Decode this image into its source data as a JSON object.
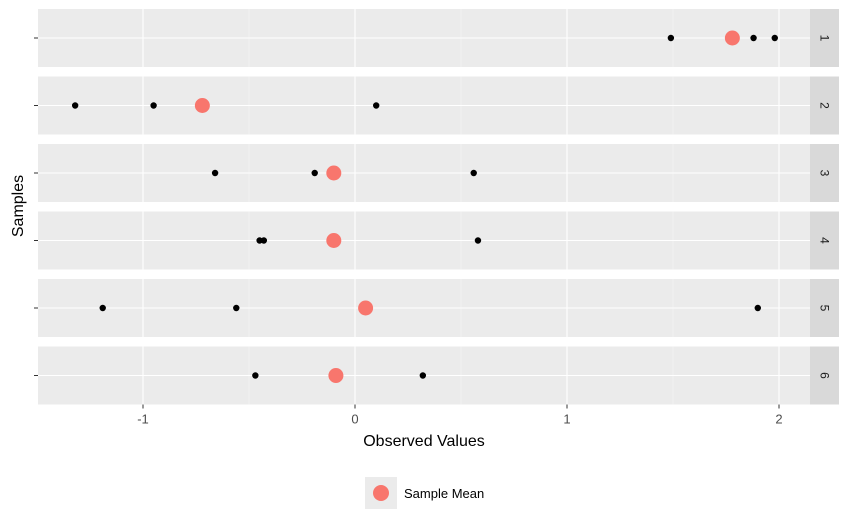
{
  "chart_data": {
    "type": "scatter",
    "xlabel": "Observed Values",
    "ylabel": "Samples",
    "xlim": [
      -1.5,
      2.28
    ],
    "x_ticks": [
      -1,
      0,
      1,
      2
    ],
    "grid": true,
    "legend": {
      "position": "bottom",
      "entries": [
        {
          "label": "Sample Mean",
          "color": "#f8766d"
        }
      ]
    },
    "point_color": "#000000",
    "mean_color": "#f8766d",
    "facets": [
      {
        "label": "1",
        "points": [
          1.49,
          1.88,
          1.98
        ],
        "mean": 1.78
      },
      {
        "label": "2",
        "points": [
          -1.32,
          -0.95,
          0.1
        ],
        "mean": -0.72
      },
      {
        "label": "3",
        "points": [
          -0.66,
          -0.19,
          0.56
        ],
        "mean": -0.1
      },
      {
        "label": "4",
        "points": [
          -0.45,
          -0.43,
          0.58
        ],
        "mean": -0.1
      },
      {
        "label": "5",
        "points": [
          -1.19,
          -0.56,
          1.9
        ],
        "mean": 0.05
      },
      {
        "label": "6",
        "points": [
          -0.47,
          -0.11,
          0.32
        ],
        "mean": -0.09
      }
    ]
  }
}
